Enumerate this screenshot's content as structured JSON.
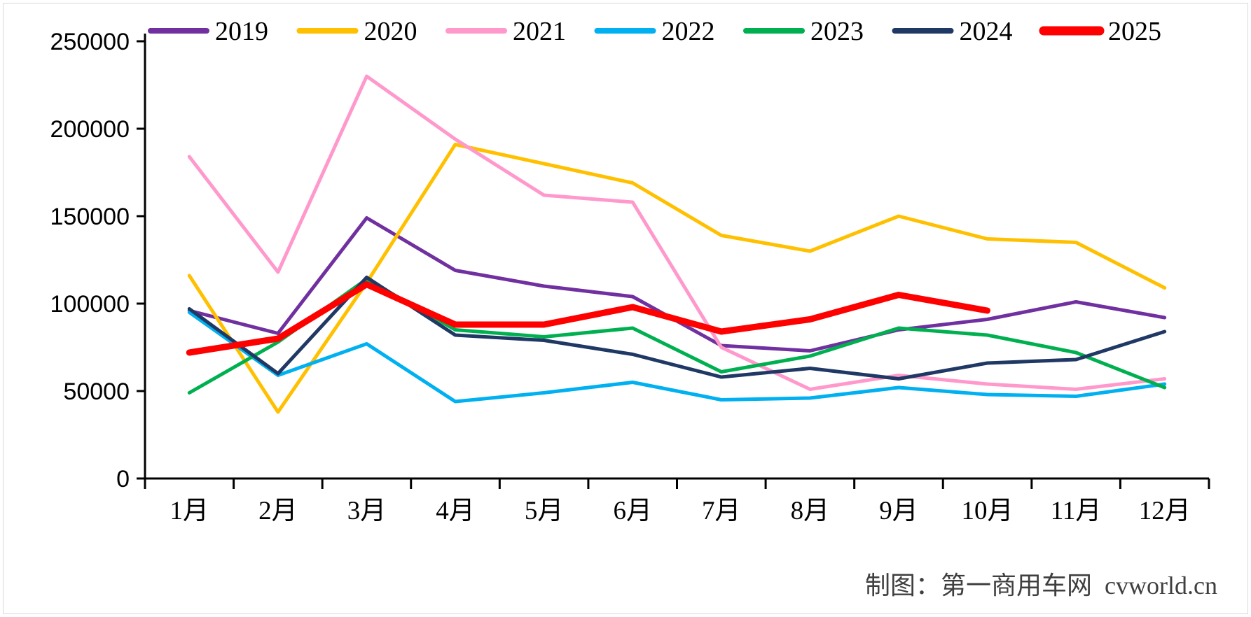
{
  "chart_data": {
    "type": "line",
    "title": "",
    "xlabel": "",
    "ylabel": "",
    "categories": [
      "1月",
      "2月",
      "3月",
      "4月",
      "5月",
      "6月",
      "7月",
      "8月",
      "9月",
      "10月",
      "11月",
      "12月"
    ],
    "series": [
      {
        "name": "2019",
        "color": "#7030A0",
        "thick": false,
        "values": [
          96000,
          83000,
          149000,
          119000,
          110000,
          104000,
          76000,
          73000,
          85000,
          91000,
          101000,
          92000
        ]
      },
      {
        "name": "2020",
        "color": "#FFC000",
        "thick": false,
        "values": [
          116000,
          38000,
          112000,
          191000,
          180000,
          169000,
          139000,
          130000,
          150000,
          137000,
          135000,
          109000
        ]
      },
      {
        "name": "2021",
        "color": "#FF99CC",
        "thick": false,
        "values": [
          184000,
          118000,
          230000,
          194000,
          162000,
          158000,
          75000,
          51000,
          59000,
          54000,
          51000,
          57000
        ]
      },
      {
        "name": "2022",
        "color": "#00B0F0",
        "thick": false,
        "values": [
          95000,
          59000,
          77000,
          44000,
          49000,
          55000,
          45000,
          46000,
          52000,
          48000,
          47000,
          54000
        ]
      },
      {
        "name": "2023",
        "color": "#00B050",
        "thick": false,
        "values": [
          49000,
          78000,
          114000,
          85000,
          81000,
          86000,
          61000,
          70000,
          86000,
          82000,
          72000,
          52000
        ]
      },
      {
        "name": "2024",
        "color": "#1F3864",
        "thick": false,
        "values": [
          97000,
          60000,
          115000,
          82000,
          79000,
          71000,
          58000,
          63000,
          57000,
          66000,
          68000,
          84000
        ]
      },
      {
        "name": "2025",
        "color": "#FF0000",
        "thick": true,
        "values": [
          72000,
          80000,
          111000,
          88000,
          88000,
          98000,
          84000,
          91000,
          105000,
          96000
        ]
      }
    ],
    "ylim": [
      0,
      250000
    ],
    "ytick_step": 50000,
    "ytick_labels": [
      "0",
      "50000",
      "100000",
      "150000",
      "200000",
      "250000"
    ],
    "grid": false,
    "legend_position": "top",
    "axis_color": "#000000"
  },
  "footer": {
    "credit": "制图：第一商用车网  cvworld.cn"
  }
}
